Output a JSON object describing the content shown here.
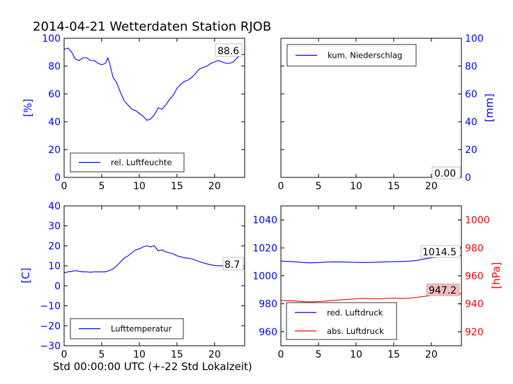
{
  "figure": {
    "title": "2014-04-21 Wetterdaten Station RJOB",
    "xlabel": "Std 00:00:00 UTC (+-22 Std Lokalzeit)"
  },
  "colors": {
    "blue": "#0000ff",
    "red": "#ff0000",
    "black": "#000000",
    "box_red": "#f4bcbc"
  },
  "chart_data": [
    {
      "id": "humidity",
      "type": "line",
      "xlim": [
        0,
        24
      ],
      "ylim": [
        0,
        100
      ],
      "xticks": [
        0,
        5,
        10,
        15,
        20
      ],
      "yticks": [
        0,
        20,
        40,
        60,
        80,
        100
      ],
      "ylabel": "[%]",
      "legend": "bottom-left",
      "last_value_label": "88.6",
      "series": [
        {
          "name": "rel. Luftfeuchte",
          "color": "#0000ff",
          "x": [
            0,
            0.5,
            1,
            1.5,
            2,
            2.5,
            3,
            3.5,
            4,
            4.5,
            5,
            5.5,
            5.8,
            6,
            6.5,
            7,
            7.5,
            8,
            8.5,
            9,
            9.5,
            10,
            10.5,
            11,
            11.5,
            12,
            12.5,
            13,
            13.5,
            14,
            14.5,
            15,
            15.5,
            16,
            16.5,
            17,
            17.5,
            18,
            18.5,
            19,
            19.5,
            20,
            20.5,
            21,
            21.5,
            22,
            22.5,
            23,
            23.5,
            24
          ],
          "y": [
            92,
            93,
            90,
            85,
            84,
            86,
            86,
            84,
            84,
            82,
            81,
            82,
            86,
            83,
            72,
            68,
            61,
            55,
            52,
            49,
            48,
            46,
            44,
            41,
            42,
            45,
            50,
            49,
            52,
            56,
            59,
            64,
            67,
            69,
            70,
            72,
            75,
            78,
            79,
            80,
            82,
            83,
            84,
            83,
            82,
            82,
            83,
            86,
            88,
            88.6
          ]
        }
      ]
    },
    {
      "id": "precipitation",
      "type": "line",
      "xlim": [
        0,
        24
      ],
      "ylim": [
        0,
        100
      ],
      "xticks": [
        0,
        5,
        10,
        15,
        20
      ],
      "yticks": [
        0,
        20,
        40,
        60,
        80,
        100
      ],
      "ylabel": "[mm]",
      "legend": "top-left",
      "last_value_label": "0.00",
      "series": [
        {
          "name": "kum. Niederschlag",
          "color": "#0000ff",
          "x": [
            0,
            24
          ],
          "y": [
            0,
            0
          ]
        }
      ]
    },
    {
      "id": "temperature",
      "type": "line",
      "xlim": [
        0,
        24
      ],
      "ylim": [
        -30,
        40
      ],
      "xticks": [
        0,
        5,
        10,
        15,
        20
      ],
      "yticks": [
        -30,
        -20,
        -10,
        0,
        10,
        20,
        30,
        40
      ],
      "ylabel": "[C]",
      "legend": "bottom-left",
      "last_value_label": "8.7",
      "series": [
        {
          "name": "Lufttemperatur",
          "color": "#0000ff",
          "x": [
            0,
            0.5,
            1,
            1.5,
            2,
            2.5,
            3,
            3.5,
            4,
            4.5,
            5,
            5.5,
            6,
            6.5,
            7,
            7.5,
            8,
            8.5,
            9,
            9.5,
            10,
            10.5,
            11,
            11.5,
            12,
            12.5,
            13,
            13.5,
            14,
            14.5,
            15,
            15.5,
            16,
            16.5,
            17,
            17.5,
            18,
            18.5,
            19,
            19.5,
            20,
            20.5,
            21,
            21.5,
            22,
            22.5,
            23,
            23.5,
            24
          ],
          "y": [
            6.5,
            7,
            7.2,
            7.6,
            7.2,
            7,
            7,
            6.8,
            7,
            7,
            7,
            7,
            7.6,
            8.5,
            10,
            12,
            14,
            15,
            16.5,
            18,
            18.5,
            19.5,
            20,
            19.5,
            20,
            17.5,
            18,
            17,
            16.5,
            16,
            15,
            14.5,
            14,
            13.8,
            13.5,
            12.8,
            12,
            11.5,
            11,
            10.5,
            10.2,
            10,
            10,
            9.8,
            9.6,
            9.5,
            9.3,
            9,
            8.7
          ]
        }
      ]
    },
    {
      "id": "pressure",
      "type": "line",
      "xlim": [
        0,
        24
      ],
      "ylim": [
        950,
        1050
      ],
      "ylim_right": [
        910,
        1010
      ],
      "xticks": [
        0,
        5,
        10,
        15,
        20
      ],
      "yticks": [
        960,
        980,
        1000,
        1020,
        1040
      ],
      "yticks_right": [
        920,
        940,
        960,
        980,
        1000
      ],
      "ylabel_right": "[hPa]",
      "legend": "bottom-left",
      "last_value_labels": [
        "1014.5",
        "947.2"
      ],
      "series": [
        {
          "name": "red. Luftdruck",
          "color": "#0000ff",
          "axis": "left",
          "x": [
            0,
            1,
            2,
            3,
            4,
            5,
            6,
            7,
            8,
            9,
            10,
            11,
            12,
            13,
            14,
            15,
            16,
            17,
            18,
            19,
            20,
            21,
            22,
            23,
            24
          ],
          "y": [
            1010.5,
            1010.3,
            1010,
            1009.5,
            1009.3,
            1009.5,
            1009.8,
            1010,
            1009.9,
            1009.8,
            1009.6,
            1009.5,
            1009.6,
            1009.8,
            1010,
            1010.1,
            1010.3,
            1010.5,
            1011,
            1012,
            1013,
            1013.5,
            1014,
            1014.3,
            1014.5
          ]
        },
        {
          "name": "abs. Luftdruck",
          "color": "#ff0000",
          "axis": "right",
          "x": [
            0,
            1,
            2,
            3,
            4,
            5,
            6,
            7,
            8,
            9,
            10,
            11,
            12,
            13,
            14,
            15,
            16,
            17,
            18,
            19,
            20,
            21,
            22,
            23,
            24
          ],
          "y": [
            942.4,
            942.2,
            942,
            941.5,
            941.3,
            941.6,
            942,
            942.5,
            942.8,
            943.2,
            943.6,
            943.8,
            943.7,
            943.6,
            943.8,
            944,
            943.8,
            944,
            944.6,
            945.2,
            946,
            946.5,
            946.8,
            947,
            947.2
          ]
        }
      ]
    }
  ]
}
